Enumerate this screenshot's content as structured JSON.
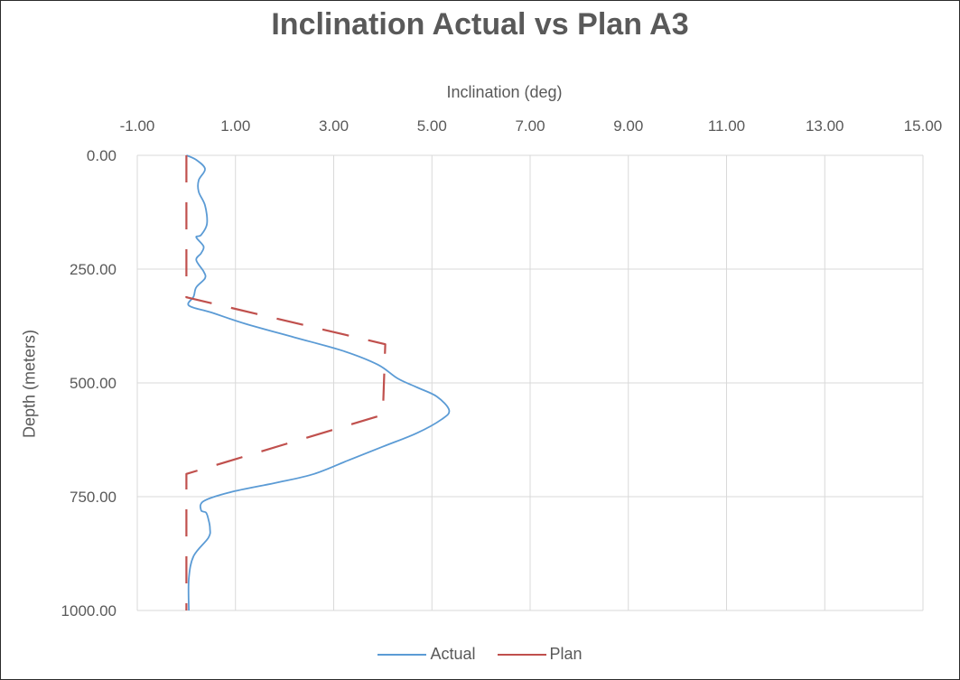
{
  "chart_data": {
    "type": "line",
    "title": "Inclination Actual vs Plan A3",
    "xlabel": "Inclination (deg)",
    "ylabel": "Depth (meters)",
    "x_axis_position": "top",
    "y_axis_reversed": true,
    "xlim": [
      -1.0,
      15.0
    ],
    "ylim": [
      0.0,
      1000.0
    ],
    "x_ticks": [
      "-1.00",
      "1.00",
      "3.00",
      "5.00",
      "7.00",
      "9.00",
      "11.00",
      "13.00",
      "15.00"
    ],
    "y_ticks": [
      "0.00",
      "250.00",
      "500.00",
      "750.00",
      "1000.00"
    ],
    "grid": true,
    "legend_position": "bottom",
    "series": [
      {
        "name": "Actual",
        "color": "#5b9bd5",
        "line_style": "solid",
        "points": [
          [
            0.0,
            0
          ],
          [
            0.2,
            10
          ],
          [
            0.38,
            30
          ],
          [
            0.25,
            55
          ],
          [
            0.25,
            80
          ],
          [
            0.38,
            110
          ],
          [
            0.42,
            150
          ],
          [
            0.3,
            175
          ],
          [
            0.2,
            180
          ],
          [
            0.35,
            200
          ],
          [
            0.3,
            215
          ],
          [
            0.2,
            230
          ],
          [
            0.35,
            255
          ],
          [
            0.38,
            270
          ],
          [
            0.2,
            290
          ],
          [
            0.15,
            310
          ],
          [
            0.05,
            330
          ],
          [
            0.5,
            345
          ],
          [
            1.2,
            370
          ],
          [
            2.2,
            400
          ],
          [
            3.2,
            430
          ],
          [
            3.9,
            460
          ],
          [
            4.3,
            490
          ],
          [
            4.7,
            510
          ],
          [
            5.1,
            530
          ],
          [
            5.35,
            560
          ],
          [
            5.2,
            580
          ],
          [
            4.7,
            610
          ],
          [
            4.0,
            640
          ],
          [
            3.3,
            670
          ],
          [
            2.6,
            700
          ],
          [
            1.8,
            720
          ],
          [
            0.9,
            740
          ],
          [
            0.35,
            760
          ],
          [
            0.3,
            780
          ],
          [
            0.4,
            785
          ],
          [
            0.45,
            800
          ],
          [
            0.48,
            820
          ],
          [
            0.45,
            840
          ],
          [
            0.15,
            880
          ],
          [
            0.05,
            930
          ],
          [
            0.05,
            1000
          ]
        ]
      },
      {
        "name": "Plan",
        "color": "#c0504d",
        "line_style": "dashed",
        "points": [
          [
            0.0,
            0
          ],
          [
            0.0,
            312
          ],
          [
            4.05,
            415
          ],
          [
            4.0,
            570
          ],
          [
            0.0,
            700
          ],
          [
            0.0,
            1000
          ]
        ]
      }
    ]
  }
}
